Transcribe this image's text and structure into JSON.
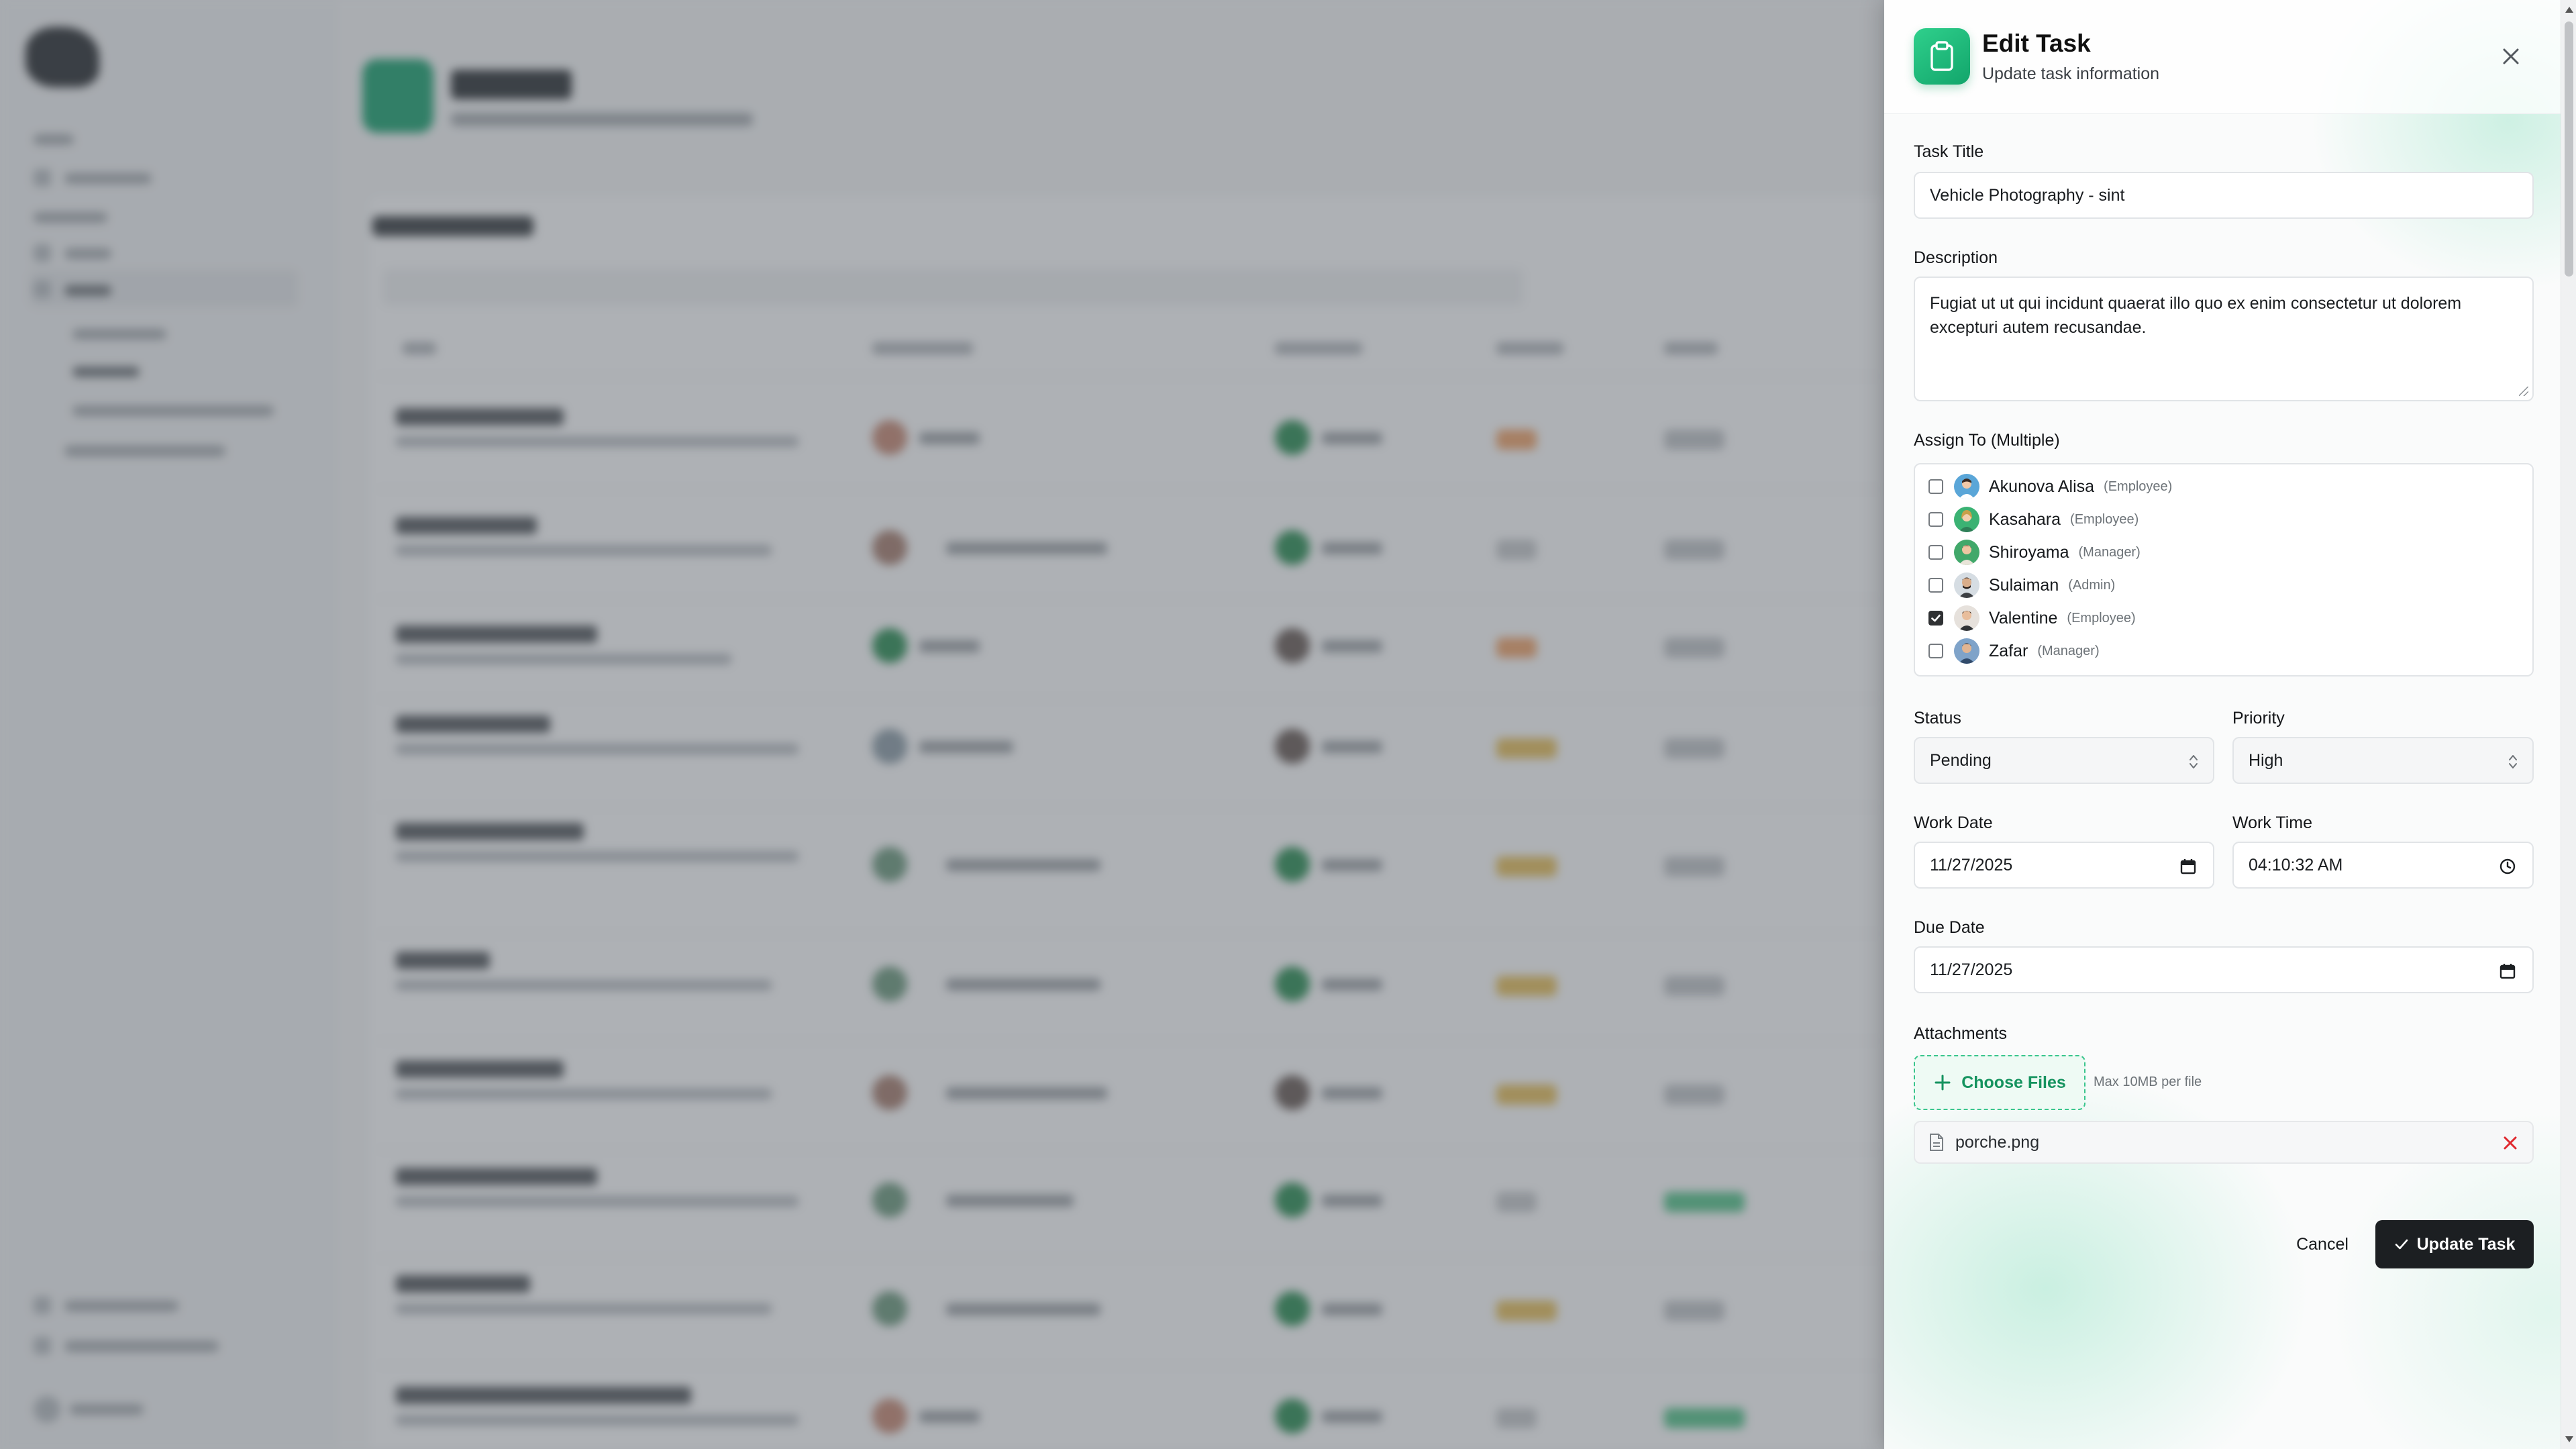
{
  "drawer": {
    "title": "Edit Task",
    "subtitle": "Update task information",
    "icon": "clipboard-icon",
    "accent": "#1db77a"
  },
  "form": {
    "task_title_label": "Task Title",
    "task_title_value": "Vehicle Photography - sint",
    "description_label": "Description",
    "description_value": "Fugiat ut ut qui incidunt quaerat illo quo ex enim consectetur ut dolorem excepturi autem recusandae.",
    "assign_label": "Assign To (Multiple)",
    "assignees": [
      {
        "name": "Akunova Alisa",
        "role": "(Employee)",
        "checked": false
      },
      {
        "name": "Kasahara",
        "role": "(Employee)",
        "checked": false
      },
      {
        "name": "Shiroyama",
        "role": "(Manager)",
        "checked": false
      },
      {
        "name": "Sulaiman",
        "role": "(Admin)",
        "checked": false
      },
      {
        "name": "Valentine",
        "role": "(Employee)",
        "checked": true
      },
      {
        "name": "Zafar",
        "role": "(Manager)",
        "checked": false
      }
    ],
    "status_label": "Status",
    "status_value": "Pending",
    "priority_label": "Priority",
    "priority_value": "High",
    "work_date_label": "Work Date",
    "work_date_value": "11/27/2025",
    "work_time_label": "Work Time",
    "work_time_value": "04:10:32 AM",
    "due_date_label": "Due Date",
    "due_date_value": "11/27/2025",
    "attachments_label": "Attachments",
    "choose_files_label": "Choose Files",
    "max_size_note": "Max 10MB per file",
    "attachment_file": "porche.png"
  },
  "actions": {
    "cancel_label": "Cancel",
    "update_label": "Update Task"
  },
  "colors": {
    "checkbox_checked": "#2f3133",
    "remove_icon": "#e0282e",
    "primary_button": "#1c1f22"
  }
}
